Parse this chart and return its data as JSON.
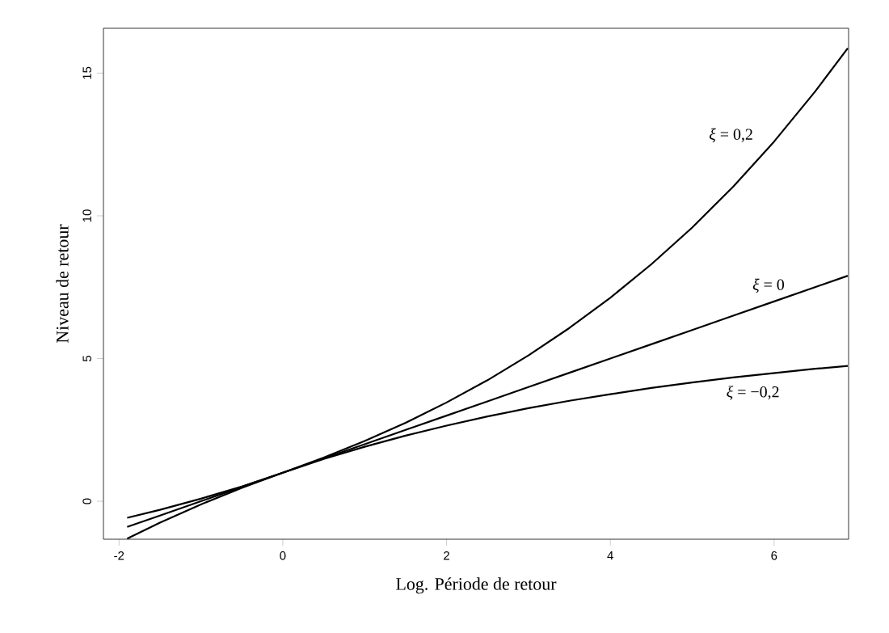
{
  "chart_data": {
    "type": "line",
    "xlabel": "Log. Période de retour",
    "ylabel": "Niveau de retour",
    "x": [
      -1.9,
      -1.5,
      -1,
      -0.5,
      0,
      0.5,
      1,
      1.5,
      2,
      2.5,
      3,
      3.5,
      4,
      4.5,
      5,
      5.5,
      6,
      6.5,
      6.9
    ],
    "series": [
      {
        "name": "*ξ* = 0,2",
        "color": "#000000",
        "values": [
          -0.58,
          -0.3,
          0.09,
          0.52,
          1,
          1.53,
          2.11,
          2.75,
          3.46,
          4.24,
          5.11,
          6.07,
          7.13,
          8.3,
          9.59,
          11.02,
          12.6,
          14.35,
          15.87
        ]
      },
      {
        "name": "*ξ* = 0",
        "color": "#000000",
        "values": [
          -0.9,
          -0.5,
          0,
          0.5,
          1,
          1.5,
          2,
          2.5,
          3,
          3.5,
          4,
          4.5,
          5,
          5.5,
          6,
          6.5,
          7,
          7.5,
          7.9
        ]
      },
      {
        "name": "*ξ* = −0,2",
        "color": "#000000",
        "values": [
          -1.31,
          -0.75,
          -0.11,
          0.47,
          1,
          1.48,
          1.91,
          2.3,
          2.65,
          2.97,
          3.26,
          3.52,
          3.75,
          3.97,
          4.16,
          4.34,
          4.49,
          4.64,
          4.74
        ]
      }
    ],
    "xlim": [
      -2.19,
      6.91
    ],
    "ylim": [
      -1.33,
      16.57
    ],
    "xticks": [
      -2,
      0,
      2,
      4,
      6
    ],
    "yticks": [
      0,
      5,
      10,
      15
    ],
    "grid": false,
    "marker": "none",
    "line_style": "solid"
  }
}
